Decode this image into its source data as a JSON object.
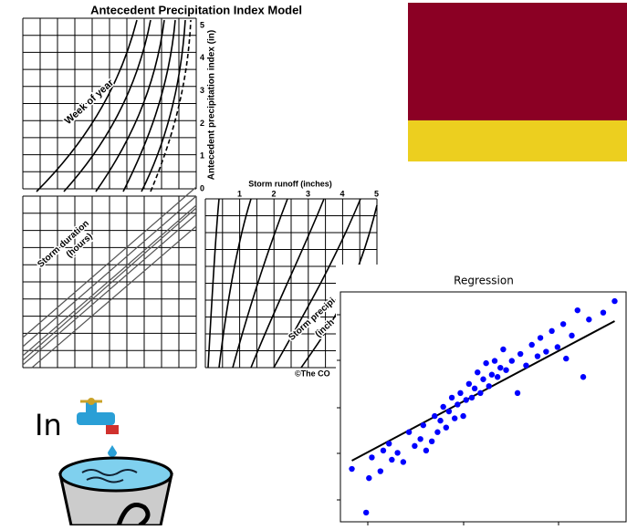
{
  "api_chart": {
    "title": "Antecedent Precipitation Index Model",
    "week_label": "Week of year",
    "index_axis_label": "Antecedent precipitation index (in)",
    "index_ticks": [
      0,
      1,
      2,
      3,
      4,
      5
    ],
    "runoff_axis_label": "Storm runoff (inches)",
    "runoff_ticks": [
      1,
      2,
      3,
      4,
      5
    ],
    "duration_label": [
      "Storm duration",
      "(hours)"
    ],
    "precip_label": [
      "Storm precipi",
      "(inch"
    ],
    "credit": "©The CO"
  },
  "regression": {
    "type": "scatter",
    "title": "Regression",
    "color": "#0000ff",
    "xlim": [
      0,
      10
    ],
    "ylim": [
      0,
      10
    ],
    "x": [
      0.4,
      0.9,
      1.0,
      1.1,
      1.4,
      1.5,
      1.7,
      1.8,
      2.0,
      2.2,
      2.4,
      2.6,
      2.8,
      2.9,
      3.0,
      3.2,
      3.3,
      3.4,
      3.5,
      3.6,
      3.7,
      3.8,
      3.9,
      4.0,
      4.1,
      4.2,
      4.3,
      4.4,
      4.5,
      4.6,
      4.7,
      4.8,
      4.9,
      5.0,
      5.1,
      5.2,
      5.3,
      5.4,
      5.5,
      5.6,
      5.7,
      5.8,
      6.0,
      6.2,
      6.3,
      6.5,
      6.7,
      6.9,
      7.0,
      7.2,
      7.4,
      7.6,
      7.8,
      7.9,
      8.1,
      8.3,
      8.5,
      8.7,
      9.2,
      9.6
    ],
    "y": [
      2.3,
      0.4,
      1.9,
      2.8,
      2.2,
      3.1,
      3.4,
      2.7,
      3.0,
      2.6,
      3.9,
      3.3,
      3.6,
      4.2,
      3.1,
      3.5,
      4.6,
      3.9,
      4.4,
      5.0,
      4.1,
      4.8,
      5.4,
      4.5,
      5.1,
      5.6,
      4.6,
      5.3,
      6.0,
      5.4,
      5.8,
      6.5,
      5.6,
      6.2,
      6.9,
      5.9,
      6.4,
      7.0,
      6.3,
      6.7,
      7.5,
      6.6,
      7.0,
      5.6,
      7.3,
      6.8,
      7.7,
      7.2,
      8.0,
      7.4,
      8.3,
      7.6,
      8.6,
      7.1,
      8.1,
      9.2,
      6.3,
      8.8,
      9.1,
      9.6
    ],
    "fit_x": [
      0.4,
      9.6
    ],
    "fit_y": [
      2.66,
      8.73
    ]
  },
  "icon": {
    "label": "In"
  }
}
